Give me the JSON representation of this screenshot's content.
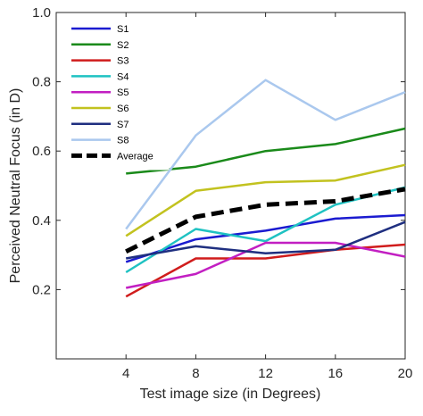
{
  "chart_data": {
    "type": "line",
    "xlabel": "Test image size (in Degrees)",
    "ylabel": "Perceived Neutral Focus (in D)",
    "xlim": [
      0,
      20
    ],
    "ylim": [
      0,
      1.0
    ],
    "xticks": [
      4,
      8,
      12,
      16,
      20
    ],
    "xtick_labels": [
      "4",
      "8",
      "12",
      "16",
      "20"
    ],
    "yticks": [
      0.2,
      0.4,
      0.6,
      0.8,
      1.0
    ],
    "ytick_labels": [
      "0.2",
      "0.4",
      "0.6",
      "0.8",
      "1.0"
    ],
    "grid": false,
    "legend_position": "top-left",
    "x": [
      4,
      8,
      12,
      16,
      20
    ],
    "series": [
      {
        "name": "S1",
        "color": "#1b1bd0",
        "values": [
          0.28,
          0.345,
          0.37,
          0.405,
          0.415
        ]
      },
      {
        "name": "S2",
        "color": "#1a8a1a",
        "values": [
          0.535,
          0.555,
          0.6,
          0.62,
          0.665
        ]
      },
      {
        "name": "S3",
        "color": "#d01c1c",
        "values": [
          0.18,
          0.29,
          0.29,
          0.315,
          0.33
        ]
      },
      {
        "name": "S4",
        "color": "#1fc2c2",
        "values": [
          0.25,
          0.375,
          0.34,
          0.445,
          0.495
        ]
      },
      {
        "name": "S5",
        "color": "#c21fc2",
        "values": [
          0.205,
          0.245,
          0.335,
          0.335,
          0.295
        ]
      },
      {
        "name": "S6",
        "color": "#c2c21f",
        "values": [
          0.355,
          0.485,
          0.51,
          0.515,
          0.56
        ]
      },
      {
        "name": "S7",
        "color": "#1f2f80",
        "values": [
          0.29,
          0.325,
          0.305,
          0.315,
          0.395
        ]
      },
      {
        "name": "S8",
        "color": "#aac8ee",
        "values": [
          0.375,
          0.645,
          0.805,
          0.69,
          0.77
        ]
      },
      {
        "name": "Average",
        "color": "#000000",
        "dashed": true,
        "values": [
          0.31,
          0.41,
          0.445,
          0.455,
          0.49
        ]
      }
    ]
  }
}
